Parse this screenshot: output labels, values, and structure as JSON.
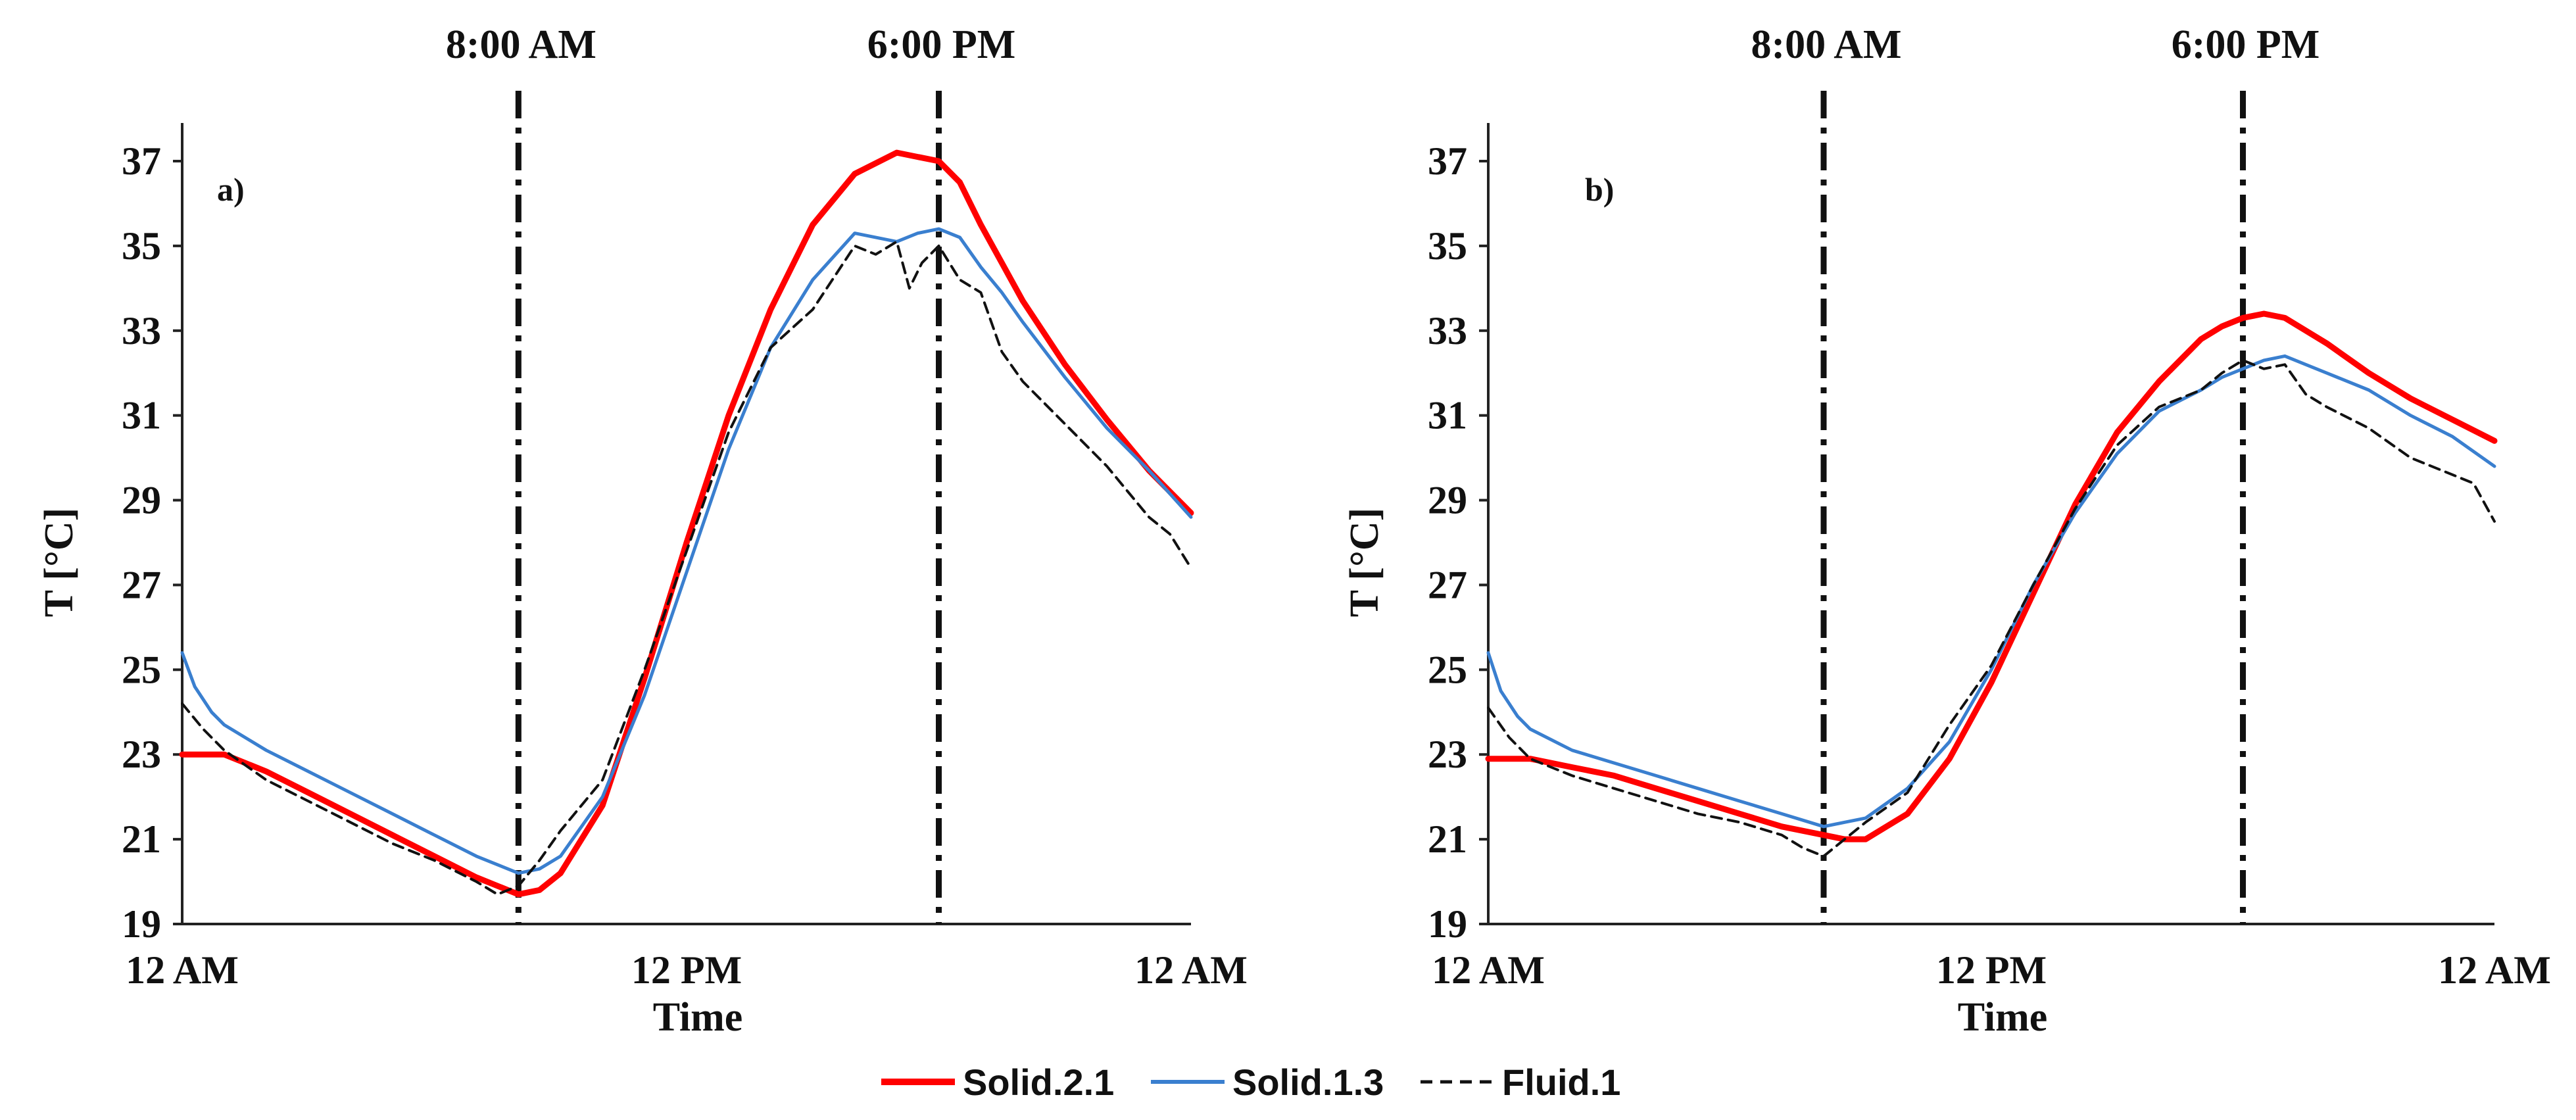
{
  "legend": {
    "items": [
      {
        "name": "Solid.2.1",
        "color": "#ff0000",
        "style": "solid"
      },
      {
        "name": "Solid.1.3",
        "color": "#3a7fcf",
        "style": "solid"
      },
      {
        "name": "Fluid.1",
        "color": "#111111",
        "style": "dashed"
      }
    ]
  },
  "annotations": {
    "morning": "8:00 AM",
    "evening": "6:00 PM"
  },
  "chart_data": [
    {
      "type": "line",
      "panel_label": "a)",
      "xlabel": "Time",
      "ylabel": "T [°C]",
      "xlim": [
        0,
        24
      ],
      "ylim": [
        19,
        38
      ],
      "x_ticks": [
        {
          "value": 0,
          "label": "12 AM"
        },
        {
          "value": 12,
          "label": "12 PM"
        },
        {
          "value": 24,
          "label": "12 AM"
        }
      ],
      "y_ticks": [
        19,
        21,
        23,
        25,
        27,
        29,
        31,
        33,
        35,
        37
      ],
      "vlines": [
        {
          "x": 8,
          "label": "8:00 AM"
        },
        {
          "x": 18,
          "label": "6:00 PM"
        }
      ],
      "series": [
        {
          "name": "Solid.2.1",
          "color": "#ff0000",
          "style": "solid",
          "x": [
            0,
            1,
            2,
            3,
            4,
            5,
            6,
            7,
            8,
            8.5,
            9,
            10,
            11,
            12,
            13,
            14,
            15,
            16,
            17,
            17.5,
            18,
            18.5,
            19,
            20,
            21,
            22,
            23,
            24
          ],
          "y": [
            23.0,
            23.0,
            22.6,
            22.1,
            21.6,
            21.1,
            20.6,
            20.1,
            19.7,
            19.8,
            20.2,
            21.8,
            24.8,
            28.0,
            31.0,
            33.5,
            35.5,
            36.7,
            37.2,
            37.1,
            37.0,
            36.5,
            35.5,
            33.7,
            32.2,
            30.9,
            29.7,
            28.7
          ]
        },
        {
          "name": "Solid.1.3",
          "color": "#3a7fcf",
          "style": "solid",
          "x": [
            0,
            0.3,
            0.7,
            1,
            2,
            3,
            4,
            5,
            6,
            7,
            8,
            8.5,
            9,
            10,
            11,
            12,
            13,
            14,
            15,
            16,
            17,
            17.5,
            18,
            18.5,
            19,
            19.5,
            20,
            21,
            22,
            23,
            24
          ],
          "y": [
            25.4,
            24.6,
            24.0,
            23.7,
            23.1,
            22.6,
            22.1,
            21.6,
            21.1,
            20.6,
            20.2,
            20.3,
            20.6,
            22.0,
            24.4,
            27.3,
            30.2,
            32.6,
            34.2,
            35.3,
            35.1,
            35.3,
            35.4,
            35.2,
            34.5,
            33.9,
            33.2,
            31.9,
            30.7,
            29.7,
            28.6
          ]
        },
        {
          "name": "Fluid.1",
          "color": "#111111",
          "style": "dashed",
          "x": [
            0,
            0.5,
            1,
            2,
            3,
            4,
            5,
            6,
            7,
            7.5,
            8,
            8.5,
            9,
            10,
            11,
            12,
            13,
            14,
            15,
            16,
            16.5,
            17,
            17.3,
            17.6,
            18,
            18.5,
            19,
            19.5,
            20,
            21,
            22,
            22.5,
            23,
            23.5,
            24
          ],
          "y": [
            24.2,
            23.6,
            23.1,
            22.4,
            21.9,
            21.4,
            20.9,
            20.5,
            20.0,
            19.7,
            19.9,
            20.5,
            21.2,
            22.4,
            25.0,
            27.8,
            30.6,
            32.6,
            33.5,
            35.0,
            34.8,
            35.1,
            34.0,
            34.6,
            35.0,
            34.2,
            33.9,
            32.5,
            31.8,
            30.8,
            29.8,
            29.2,
            28.6,
            28.2,
            27.4
          ]
        }
      ]
    },
    {
      "type": "line",
      "panel_label": "b)",
      "xlabel": "Time",
      "ylabel": "T [°C]",
      "xlim": [
        0,
        24
      ],
      "ylim": [
        19,
        38
      ],
      "x_ticks": [
        {
          "value": 0,
          "label": "12 AM"
        },
        {
          "value": 12,
          "label": "12 PM"
        },
        {
          "value": 24,
          "label": "12 AM"
        }
      ],
      "y_ticks": [
        19,
        21,
        23,
        25,
        27,
        29,
        31,
        33,
        35,
        37
      ],
      "vlines": [
        {
          "x": 8,
          "label": "8:00 AM"
        },
        {
          "x": 18,
          "label": "6:00 PM"
        }
      ],
      "series": [
        {
          "name": "Solid.2.1",
          "color": "#ff0000",
          "style": "solid",
          "x": [
            0,
            1,
            2,
            3,
            4,
            5,
            6,
            7,
            8,
            8.5,
            9,
            10,
            11,
            12,
            13,
            14,
            15,
            16,
            17,
            17.5,
            18,
            18.5,
            19,
            20,
            21,
            22,
            23,
            24
          ],
          "y": [
            22.9,
            22.9,
            22.7,
            22.5,
            22.2,
            21.9,
            21.6,
            21.3,
            21.1,
            21.0,
            21.0,
            21.6,
            22.9,
            24.7,
            26.8,
            28.9,
            30.6,
            31.8,
            32.8,
            33.1,
            33.3,
            33.4,
            33.3,
            32.7,
            32.0,
            31.4,
            30.9,
            30.4
          ]
        },
        {
          "name": "Solid.1.3",
          "color": "#3a7fcf",
          "style": "solid",
          "x": [
            0,
            0.3,
            0.7,
            1,
            2,
            3,
            4,
            5,
            6,
            7,
            8,
            8.5,
            9,
            10,
            11,
            12,
            13,
            14,
            15,
            16,
            17,
            17.5,
            18,
            18.5,
            19,
            19.5,
            20,
            21,
            22,
            23,
            24
          ],
          "y": [
            25.4,
            24.5,
            23.9,
            23.6,
            23.1,
            22.8,
            22.5,
            22.2,
            21.9,
            21.6,
            21.3,
            21.4,
            21.5,
            22.2,
            23.3,
            25.0,
            27.0,
            28.7,
            30.1,
            31.1,
            31.6,
            31.9,
            32.1,
            32.3,
            32.4,
            32.2,
            32.0,
            31.6,
            31.0,
            30.5,
            29.8
          ]
        },
        {
          "name": "Fluid.1",
          "color": "#111111",
          "style": "dashed",
          "x": [
            0,
            0.5,
            1,
            2,
            3,
            4,
            5,
            6,
            7,
            7.5,
            8,
            8.5,
            9,
            10,
            11,
            12,
            13,
            14,
            15,
            16,
            17,
            17.5,
            18,
            18.5,
            19,
            19.5,
            20,
            21,
            22,
            23,
            23.5,
            24
          ],
          "y": [
            24.1,
            23.4,
            22.9,
            22.5,
            22.2,
            21.9,
            21.6,
            21.4,
            21.1,
            20.8,
            20.6,
            21.0,
            21.4,
            22.1,
            23.7,
            25.1,
            27.0,
            28.8,
            30.3,
            31.2,
            31.6,
            32.0,
            32.3,
            32.1,
            32.2,
            31.5,
            31.2,
            30.7,
            30.0,
            29.6,
            29.4,
            28.5
          ]
        }
      ]
    }
  ]
}
